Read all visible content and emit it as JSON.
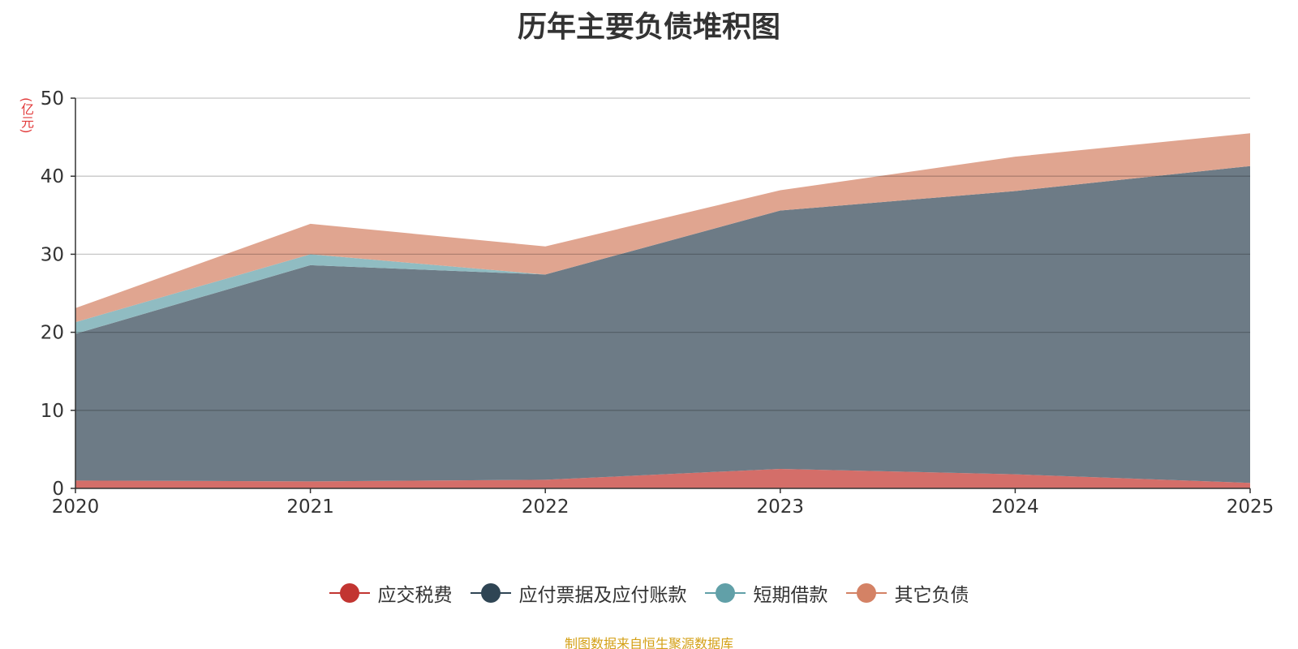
{
  "chart_data": {
    "type": "area",
    "stacked": true,
    "title": "历年主要负债堆积图",
    "ylabel": "(亿元)",
    "xlabel": "",
    "categories": [
      "2020",
      "2021",
      "2022",
      "2023",
      "2024",
      "2025"
    ],
    "ylim": [
      0,
      50
    ],
    "yticks": [
      0,
      10,
      20,
      30,
      40,
      50
    ],
    "grid": true,
    "legend_position": "bottom",
    "series": [
      {
        "name": "应交税费",
        "color": "#c23531",
        "fill": "#d46e69",
        "values": [
          1.0,
          0.9,
          1.1,
          2.5,
          1.8,
          0.7
        ]
      },
      {
        "name": "应付票据及应付账款",
        "color": "#2f4554",
        "fill": "#6d7b86",
        "values": [
          18.8,
          27.7,
          26.3,
          33.1,
          36.3,
          40.6
        ]
      },
      {
        "name": "短期借款",
        "color": "#61a0a8",
        "fill": "#90bcc2",
        "values": [
          1.5,
          1.4,
          0.0,
          0.0,
          0.0,
          0.0
        ]
      },
      {
        "name": "其它负债",
        "color": "#d48265",
        "fill": "#e0a590",
        "values": [
          1.8,
          3.9,
          3.6,
          2.6,
          4.4,
          4.2
        ]
      }
    ]
  },
  "footer": {
    "source": "制图数据来自恒生聚源数据库"
  }
}
